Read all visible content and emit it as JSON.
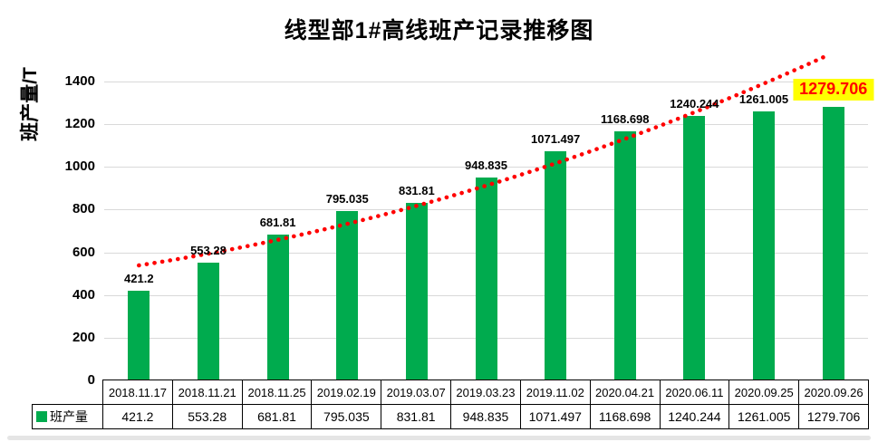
{
  "chart": {
    "title": "线型部1#高线班产记录推移图",
    "y_axis_title": "班产量/T",
    "legend_label": "班产量",
    "colors": {
      "bar": "#00ab4e",
      "trendline": "#ff0000",
      "gridline": "#d9d9d9",
      "highlight_bg": "#ffff00",
      "highlight_text": "#ff0000"
    }
  },
  "chart_data": {
    "type": "bar",
    "title": "线型部1#高线班产记录推移图",
    "xlabel": "",
    "ylabel": "班产量/T",
    "categories": [
      "2018.11.17",
      "2018.11.21",
      "2018.11.25",
      "2019.02.19",
      "2019.03.07",
      "2019.03.23",
      "2019.11.02",
      "2020.04.21",
      "2020.06.11",
      "2020.09.25",
      "2020.09.26"
    ],
    "series": [
      {
        "name": "班产量",
        "values": [
          421.2,
          553.28,
          681.81,
          795.035,
          831.81,
          948.835,
          1071.497,
          1168.698,
          1240.244,
          1261.005,
          1279.706
        ],
        "value_labels": [
          "421.2",
          "553.28",
          "681.81",
          "795.035",
          "831.81",
          "948.835",
          "1071.497",
          "1168.698",
          "1240.244",
          "1261.005",
          "1279.706"
        ]
      }
    ],
    "ylim": [
      0,
      1400
    ],
    "yticks": [
      0,
      200,
      400,
      600,
      800,
      1000,
      1200,
      1400
    ],
    "grid": true,
    "legend_position": "bottom-table",
    "data_labels": true,
    "highlighted_point_index": 10,
    "trendline": {
      "type": "power",
      "style": "dotted",
      "color": "#ff0000"
    },
    "data_table_shown": true
  }
}
